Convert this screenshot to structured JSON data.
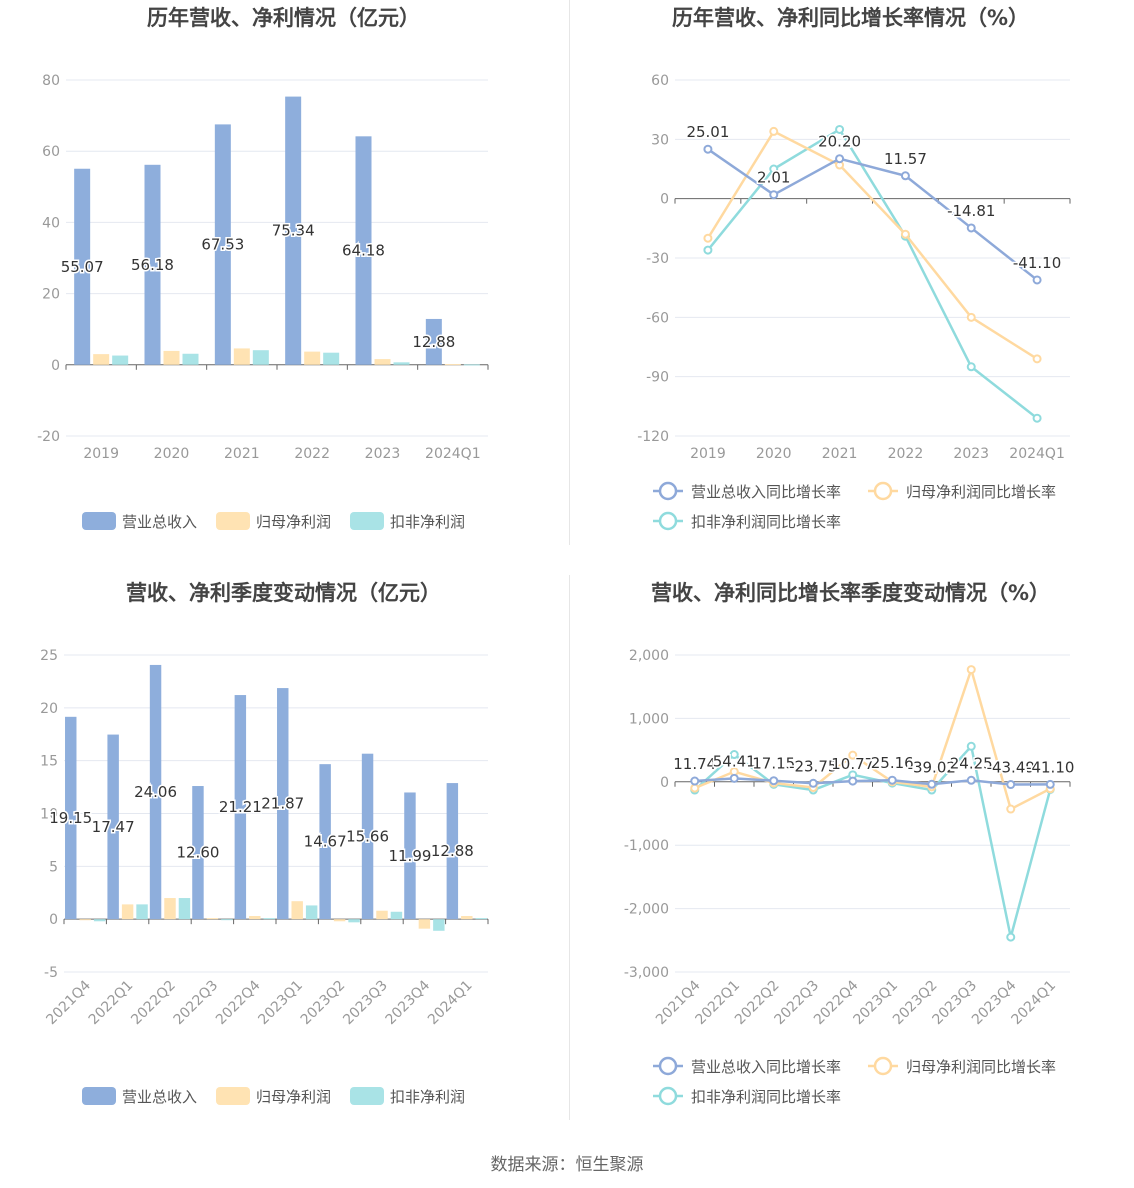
{
  "source_label": "数据来源：恒生聚源",
  "colors": {
    "revenue": "#8EAEDC",
    "parent_profit": "#FFE3B3",
    "deducted_profit": "#A9E3E6",
    "grid": "#e4e8f0",
    "axis": "#666666"
  },
  "chart_data": [
    {
      "type": "bar",
      "title": "历年营收、净利情况（亿元）",
      "categories": [
        "2019",
        "2020",
        "2021",
        "2022",
        "2023",
        "2024Q1"
      ],
      "ylim": [
        -20,
        80
      ],
      "yticks": [
        -20,
        0,
        20,
        40,
        60,
        80
      ],
      "grid": true,
      "legend_position": "bottom",
      "series": [
        {
          "name": "营业总收入",
          "values": [
            55.07,
            56.18,
            67.53,
            75.34,
            64.18,
            12.88
          ],
          "labels": [
            "55.07",
            "56.18",
            "67.53",
            "75.34",
            "64.18",
            "12.88"
          ]
        },
        {
          "name": "归母净利润",
          "values": [
            3.0,
            3.9,
            4.6,
            3.7,
            1.6,
            0.2
          ]
        },
        {
          "name": "扣非净利润",
          "values": [
            2.6,
            3.1,
            4.1,
            3.4,
            0.7,
            0.1
          ]
        }
      ]
    },
    {
      "type": "line",
      "title": "历年营收、净利同比增长率情况（%）",
      "categories": [
        "2019",
        "2020",
        "2021",
        "2022",
        "2023",
        "2024Q1"
      ],
      "ylim": [
        -120,
        60
      ],
      "yticks": [
        -120,
        -90,
        -60,
        -30,
        0,
        30,
        60
      ],
      "grid": true,
      "legend_position": "bottom",
      "series": [
        {
          "name": "营业总收入同比增长率",
          "values": [
            25.01,
            2.01,
            20.2,
            11.57,
            -14.81,
            -41.1
          ],
          "labels": [
            "25.01",
            "2.01",
            "20.20",
            "11.57",
            "-14.81",
            "-41.10"
          ]
        },
        {
          "name": "归母净利润同比增长率",
          "values": [
            -20,
            34,
            17,
            -18,
            -60,
            -81
          ]
        },
        {
          "name": "扣非净利润同比增长率",
          "values": [
            -26,
            15,
            35,
            -19,
            -85,
            -111
          ]
        }
      ]
    },
    {
      "type": "bar",
      "title": "营收、净利季度变动情况（亿元）",
      "categories": [
        "2021Q4",
        "2022Q1",
        "2022Q2",
        "2022Q3",
        "2022Q4",
        "2023Q1",
        "2023Q2",
        "2023Q3",
        "2023Q4",
        "2024Q1"
      ],
      "ylim": [
        -5,
        25
      ],
      "yticks": [
        -5,
        0,
        5,
        10,
        15,
        20,
        25
      ],
      "grid": true,
      "legend_position": "bottom",
      "series": [
        {
          "name": "营业总收入",
          "values": [
            19.15,
            17.47,
            24.06,
            12.6,
            21.21,
            21.87,
            14.67,
            15.66,
            11.99,
            12.88
          ],
          "labels": [
            "19.15",
            "17.47",
            "24.06",
            "12.60",
            "21.21",
            "21.87",
            "14.67",
            "15.66",
            "11.99",
            "12.88"
          ]
        },
        {
          "name": "归母净利润",
          "values": [
            -0.1,
            1.4,
            2.0,
            0.1,
            0.3,
            1.7,
            -0.2,
            0.8,
            -0.9,
            0.3
          ]
        },
        {
          "name": "扣非净利润",
          "values": [
            -0.2,
            1.4,
            2.0,
            0.0,
            0.1,
            1.3,
            -0.3,
            0.7,
            -1.1,
            0.1
          ]
        }
      ]
    },
    {
      "type": "line",
      "title": "营收、净利同比增长率季度变动情况（%）",
      "categories": [
        "2021Q4",
        "2022Q1",
        "2022Q2",
        "2022Q3",
        "2022Q4",
        "2023Q1",
        "2023Q2",
        "2023Q3",
        "2023Q4",
        "2024Q1"
      ],
      "ylim": [
        -3000,
        2000
      ],
      "yticks": [
        -3000,
        -2000,
        -1000,
        0,
        1000,
        2000
      ],
      "ytick_labels": [
        "-3,000",
        "-2,000",
        "-1,000",
        "0",
        "1,000",
        "2,000"
      ],
      "grid": true,
      "legend_position": "bottom",
      "series": [
        {
          "name": "营业总收入同比增长率",
          "values": [
            11.74,
            54.41,
            17.15,
            -23.75,
            10.77,
            25.16,
            -39.02,
            24.25,
            -43.49,
            -41.1
          ],
          "labels": [
            "11.74",
            "54.41",
            "17.15",
            "-23.75",
            "10.77",
            "25.16",
            "-39.02",
            "24.25",
            "-43.49",
            "-41.10"
          ]
        },
        {
          "name": "归母净利润同比增长率",
          "values": [
            -100,
            160,
            -20,
            -90,
            420,
            0,
            -80,
            1770,
            -430,
            -110
          ]
        },
        {
          "name": "扣非净利润同比增长率",
          "values": [
            -130,
            430,
            -40,
            -130,
            110,
            -20,
            -130,
            560,
            -2450,
            -120
          ]
        }
      ]
    }
  ]
}
